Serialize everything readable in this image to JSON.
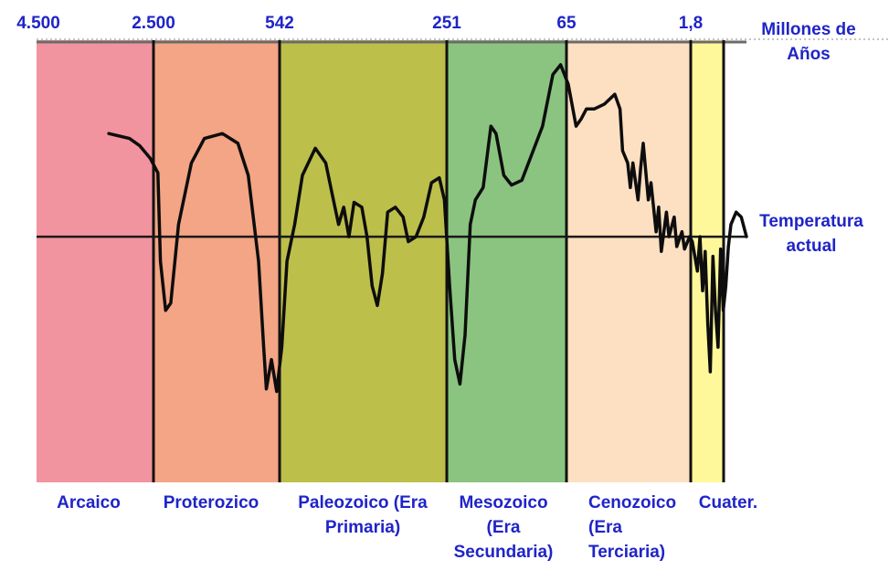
{
  "chart_data": {
    "type": "line",
    "title": "",
    "xlabel": "",
    "ylabel": "",
    "x_unit": "Millones de Años",
    "x_ticks": [
      "4.500",
      "2.500",
      "542",
      "251",
      "65",
      "1,8"
    ],
    "reference_label": "Temperatura actual",
    "eras": [
      {
        "name": "Arcaico",
        "start": "4.500",
        "end": "2.500",
        "color": "#f2949f"
      },
      {
        "name": "Proterozico",
        "start": "2.500",
        "end": "542",
        "color": "#f3a585"
      },
      {
        "name": "Paleozoico (Era Primaria)",
        "start": "542",
        "end": "251",
        "color": "#bdbf4b"
      },
      {
        "name": "Mesozoico (Era Secundaria)",
        "start": "251",
        "end": "65",
        "color": "#8bc480"
      },
      {
        "name": "Cenozoico (Era Terciaria)",
        "start": "65",
        "end": "1,8",
        "color": "#fde0c1"
      },
      {
        "name": "Cuater.",
        "start": "1,8",
        "end": "0",
        "color": "#fff89a"
      }
    ],
    "series": [
      {
        "values": [
          [
            0.28,
            0.42
          ],
          [
            0.36,
            0.4
          ],
          [
            0.4,
            0.37
          ],
          [
            0.44,
            0.32
          ],
          [
            0.47,
            0.26
          ],
          [
            0.48,
            -0.1
          ],
          [
            0.5,
            -0.3
          ],
          [
            0.52,
            -0.27
          ],
          [
            0.55,
            0.05
          ],
          [
            0.6,
            0.3
          ],
          [
            0.65,
            0.4
          ],
          [
            0.72,
            0.42
          ],
          [
            0.78,
            0.38
          ],
          [
            0.82,
            0.25
          ],
          [
            0.86,
            -0.1
          ],
          [
            0.88,
            -0.45
          ],
          [
            0.89,
            -0.62
          ],
          [
            0.91,
            -0.5
          ],
          [
            0.93,
            -0.63
          ],
          [
            0.95,
            -0.45
          ],
          [
            0.97,
            -0.1
          ],
          [
            1.0,
            0.05
          ],
          [
            1.03,
            0.25
          ],
          [
            1.08,
            0.36
          ],
          [
            1.12,
            0.3
          ],
          [
            1.15,
            0.15
          ],
          [
            1.17,
            0.05
          ],
          [
            1.19,
            0.12
          ],
          [
            1.21,
            0.0
          ],
          [
            1.23,
            0.14
          ],
          [
            1.26,
            0.12
          ],
          [
            1.28,
            0.0
          ],
          [
            1.3,
            -0.2
          ],
          [
            1.32,
            -0.28
          ],
          [
            1.34,
            -0.15
          ],
          [
            1.36,
            0.1
          ],
          [
            1.39,
            0.12
          ],
          [
            1.42,
            0.08
          ],
          [
            1.44,
            -0.02
          ],
          [
            1.47,
            0.0
          ],
          [
            1.5,
            0.08
          ],
          [
            1.53,
            0.22
          ],
          [
            1.56,
            0.24
          ],
          [
            1.58,
            0.15
          ],
          [
            1.6,
            -0.2
          ],
          [
            1.62,
            -0.5
          ],
          [
            1.64,
            -0.6
          ],
          [
            1.66,
            -0.4
          ],
          [
            1.68,
            0.05
          ],
          [
            1.7,
            0.15
          ],
          [
            1.73,
            0.2
          ],
          [
            1.76,
            0.45
          ],
          [
            1.78,
            0.42
          ],
          [
            1.81,
            0.25
          ],
          [
            1.84,
            0.21
          ],
          [
            1.88,
            0.23
          ],
          [
            1.92,
            0.34
          ],
          [
            1.96,
            0.45
          ],
          [
            2.0,
            0.66
          ],
          [
            2.03,
            0.7
          ],
          [
            2.06,
            0.62
          ],
          [
            2.09,
            0.45
          ],
          [
            2.11,
            0.48
          ],
          [
            2.13,
            0.52
          ],
          [
            2.16,
            0.52
          ],
          [
            2.2,
            0.54
          ],
          [
            2.24,
            0.58
          ],
          [
            2.26,
            0.52
          ],
          [
            2.27,
            0.35
          ],
          [
            2.29,
            0.3
          ],
          [
            2.3,
            0.2
          ],
          [
            2.31,
            0.3
          ],
          [
            2.33,
            0.15
          ],
          [
            2.34,
            0.28
          ],
          [
            2.35,
            0.38
          ],
          [
            2.37,
            0.15
          ],
          [
            2.38,
            0.22
          ],
          [
            2.4,
            0.02
          ],
          [
            2.41,
            0.12
          ],
          [
            2.42,
            -0.06
          ],
          [
            2.44,
            0.1
          ],
          [
            2.45,
            0.0
          ],
          [
            2.47,
            0.08
          ],
          [
            2.48,
            -0.04
          ],
          [
            2.5,
            0.02
          ],
          [
            2.51,
            -0.05
          ],
          [
            2.53,
            0.0
          ],
          [
            2.54,
            -0.02
          ],
          [
            2.55,
            -0.08
          ],
          [
            2.56,
            -0.14
          ],
          [
            2.57,
            0.0
          ],
          [
            2.58,
            -0.22
          ],
          [
            2.59,
            -0.06
          ],
          [
            2.6,
            -0.35
          ],
          [
            2.61,
            -0.55
          ],
          [
            2.62,
            -0.08
          ],
          [
            2.63,
            -0.3
          ],
          [
            2.64,
            -0.45
          ],
          [
            2.65,
            -0.05
          ],
          [
            2.66,
            -0.3
          ],
          [
            2.67,
            -0.2
          ],
          [
            2.68,
            -0.04
          ],
          [
            2.69,
            0.05
          ],
          [
            2.71,
            0.1
          ],
          [
            2.73,
            0.08
          ],
          [
            2.75,
            0.0
          ]
        ]
      }
    ],
    "xlim": [
      0,
      2.75
    ],
    "ylim": [
      -1.0,
      0.8
    ]
  }
}
